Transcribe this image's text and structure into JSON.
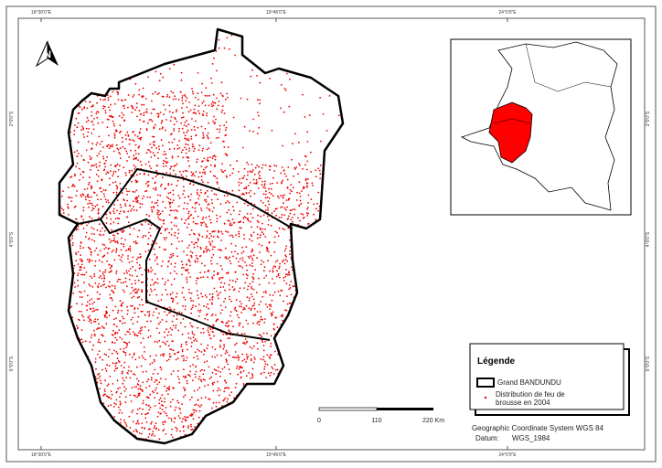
{
  "north_arrow": "N",
  "graticule": {
    "top": [
      "18°30'0\"E",
      "19°45'0\"E",
      "24°0'0\"E"
    ],
    "bottom": [
      "18°30'0\"E",
      "19°45'0\"E",
      "24°0'0\"E"
    ],
    "left": [
      "2°0'0\"S",
      "4°0'0\"S",
      "6°0'0\"S"
    ],
    "right": [
      "2°0'0\"S",
      "4°0'0\"S",
      "6°0'0\"S"
    ]
  },
  "legend": {
    "title": "Légende",
    "items": [
      "Grand BANDUNDU",
      "Distribution de feu de brousse en 2004"
    ]
  },
  "scale_bar": {
    "labels": [
      "0",
      "110",
      "220 Km"
    ]
  },
  "footer": {
    "coordinate_system": "Geographic Coordinate System WGS 84",
    "datum_label": "Datum:",
    "datum_value": "WGS_1984"
  }
}
